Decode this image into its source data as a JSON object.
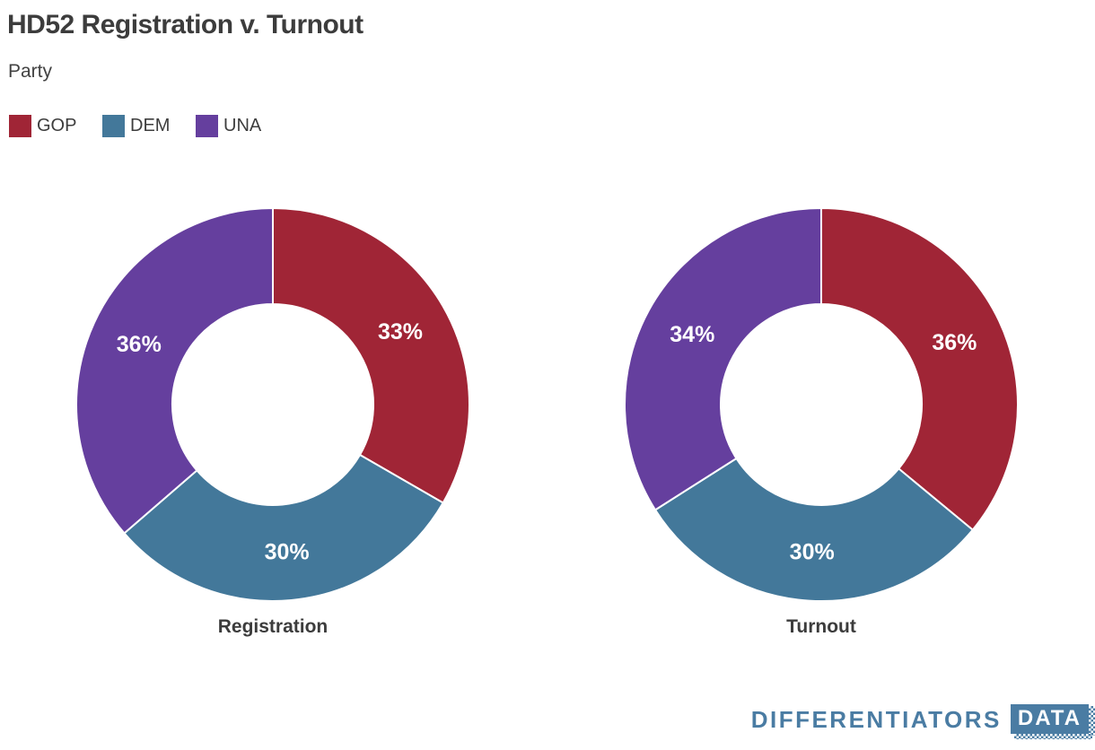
{
  "page": {
    "title": "HD52 Registration v. Turnout"
  },
  "legend": {
    "title": "Party",
    "items": [
      {
        "label": "GOP",
        "color": "#a02536"
      },
      {
        "label": "DEM",
        "color": "#43789a"
      },
      {
        "label": "UNA",
        "color": "#653f9e"
      }
    ]
  },
  "chart_data": [
    {
      "type": "pie",
      "subtype": "donut",
      "title": "Registration",
      "categories": [
        "GOP",
        "DEM",
        "UNA"
      ],
      "values": [
        33,
        30,
        36
      ],
      "labels": [
        "33%",
        "30%",
        "36%"
      ],
      "colors": [
        "#a02536",
        "#43789a",
        "#653f9e"
      ],
      "start_angle_deg": 0,
      "direction": "clockwise",
      "inner_radius_ratio": 0.51,
      "label_color": "#ffffff",
      "slice_border_color": "#ffffff"
    },
    {
      "type": "pie",
      "subtype": "donut",
      "title": "Turnout",
      "categories": [
        "GOP",
        "DEM",
        "UNA"
      ],
      "values": [
        36,
        30,
        34
      ],
      "labels": [
        "36%",
        "30%",
        "34%"
      ],
      "colors": [
        "#a02536",
        "#43789a",
        "#653f9e"
      ],
      "start_angle_deg": 0,
      "direction": "clockwise",
      "inner_radius_ratio": 0.51,
      "label_color": "#ffffff",
      "slice_border_color": "#ffffff"
    }
  ],
  "footer": {
    "brand_text": "DIFFERENTIATORS",
    "brand_badge_text": "DATA",
    "brand_color": "#4a7ca3"
  },
  "colors": {
    "background": "#ffffff",
    "title_text": "#3c3c3c",
    "gop": "#a02536",
    "dem": "#43789a",
    "una": "#653f9e",
    "brand_blue": "#4a7ca3"
  }
}
